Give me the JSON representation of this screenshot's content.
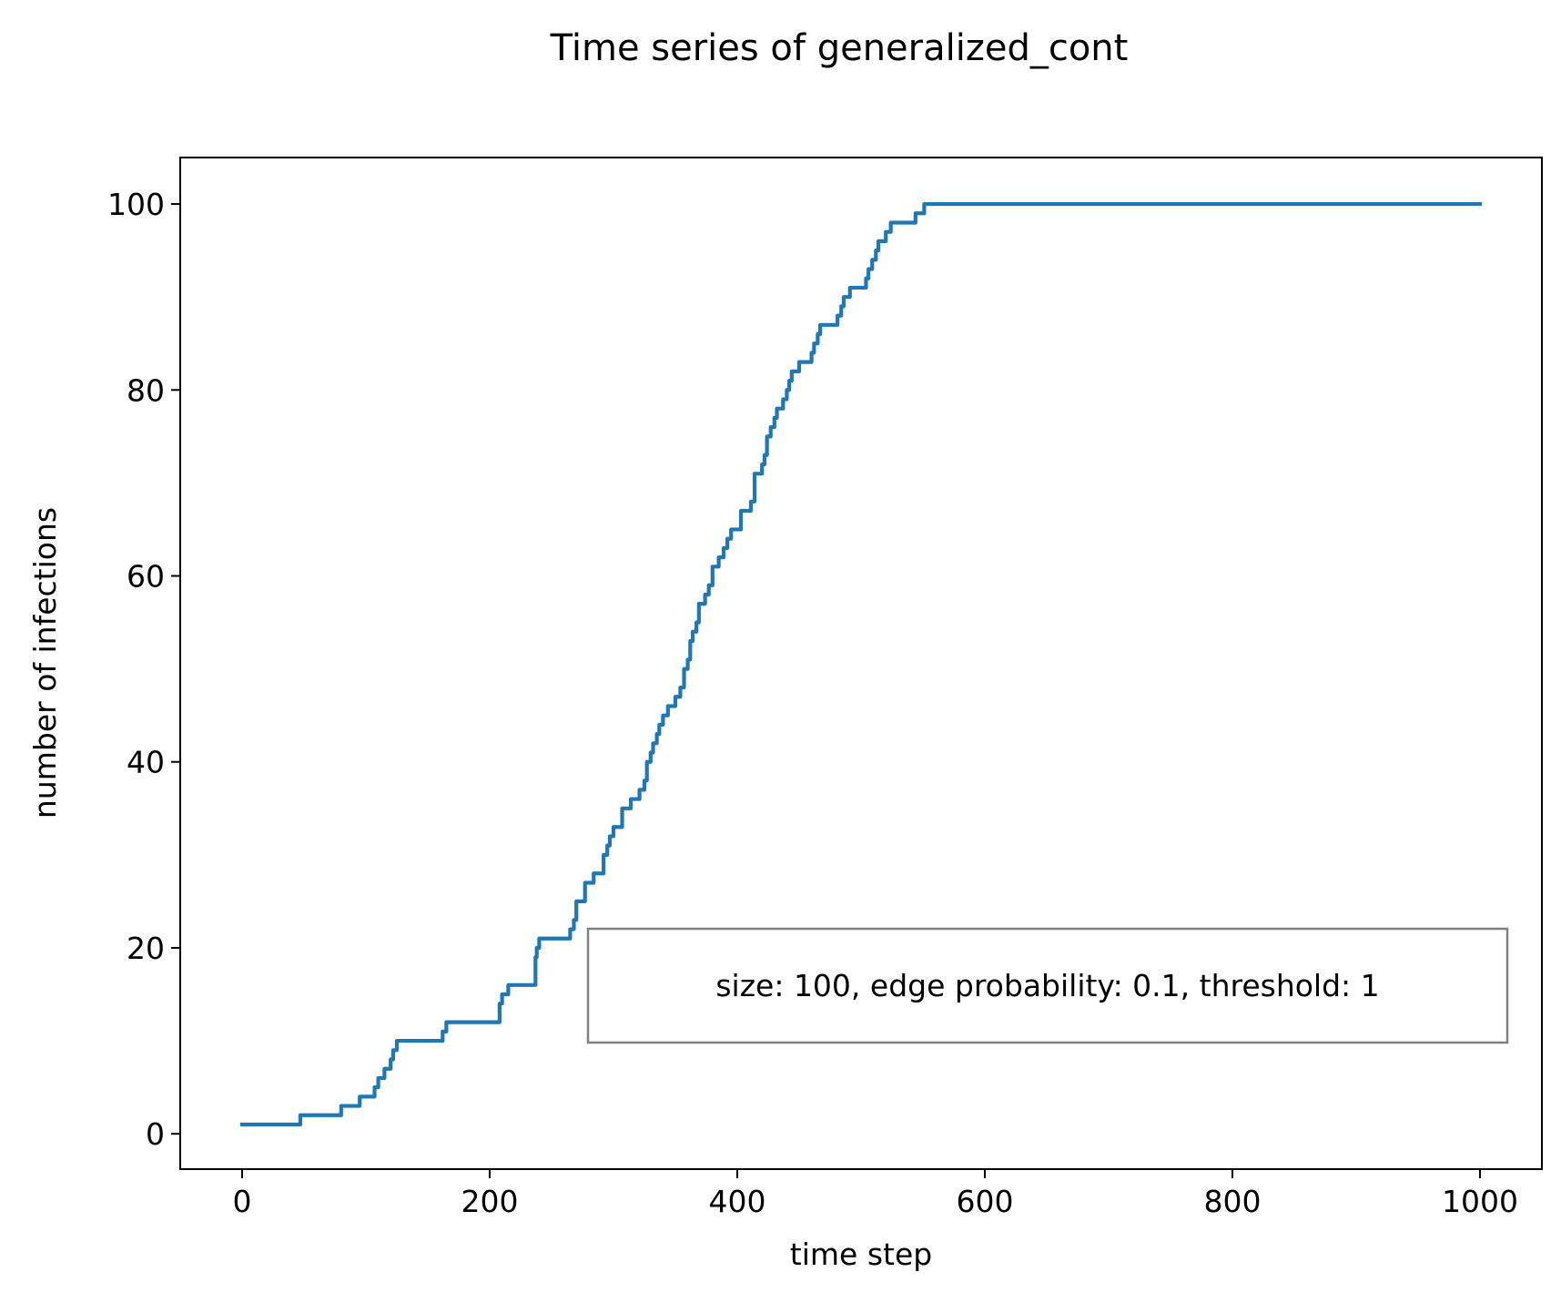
{
  "chart_data": {
    "type": "line",
    "title": "Time series of generalized_cont",
    "xlabel": "time step",
    "ylabel": "number of infections",
    "xlim": [
      -50,
      1050
    ],
    "ylim": [
      -3.8,
      105
    ],
    "xticks": [
      0,
      200,
      400,
      600,
      800,
      1000
    ],
    "yticks": [
      0,
      20,
      40,
      60,
      80,
      100
    ],
    "xtick_labels": [
      "0",
      "200",
      "400",
      "600",
      "800",
      "1000"
    ],
    "ytick_labels": [
      "0",
      "20",
      "40",
      "60",
      "80",
      "100"
    ],
    "grid": false,
    "annotation": "size: 100, edge probability: 0.1, threshold: 1",
    "series": [
      {
        "color": "#1f77b4",
        "step": true,
        "x": [
          0,
          47,
          80,
          95,
          107,
          110,
          115,
          120,
          122,
          125,
          127,
          162,
          165,
          172,
          208,
          210,
          215,
          224,
          237,
          238,
          240,
          249,
          265,
          268,
          270,
          272,
          277,
          284,
          287,
          292,
          295,
          297,
          300,
          307,
          311,
          314,
          321,
          325,
          327,
          330,
          332,
          335,
          337,
          340,
          344,
          350,
          354,
          357,
          360,
          362,
          364,
          367,
          369,
          374,
          377,
          380,
          385,
          389,
          392,
          395,
          398,
          403,
          411,
          414,
          420,
          422,
          424,
          427,
          430,
          432,
          437,
          440,
          442,
          444,
          447,
          450,
          460,
          462,
          465,
          467,
          470,
          481,
          484,
          486,
          491,
          504,
          506,
          509,
          512,
          514,
          517,
          520,
          524,
          544,
          551,
          566,
          1000
        ],
        "values": [
          1,
          2,
          3,
          4,
          5,
          6,
          7,
          8,
          9,
          10,
          10,
          11,
          12,
          12,
          14,
          15,
          16,
          16,
          19,
          20,
          21,
          21,
          22,
          23,
          25,
          25,
          27,
          28,
          28,
          30,
          31,
          32,
          33,
          35,
          35,
          36,
          37,
          38,
          40,
          41,
          42,
          43,
          44,
          45,
          46,
          47,
          48,
          50,
          51,
          53,
          54,
          55,
          57,
          58,
          59,
          61,
          62,
          63,
          64,
          65,
          65,
          67,
          68,
          71,
          72,
          73,
          75,
          76,
          77,
          78,
          79,
          80,
          81,
          82,
          82,
          83,
          84,
          85,
          86,
          87,
          87,
          88,
          89,
          90,
          91,
          92,
          93,
          94,
          95,
          96,
          96,
          97,
          98,
          99,
          100,
          100,
          100
        ]
      }
    ]
  }
}
